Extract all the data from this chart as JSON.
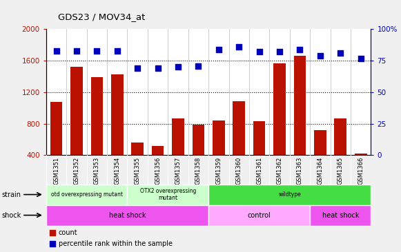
{
  "title": "GDS23 / MOV34_at",
  "samples": [
    "GSM1351",
    "GSM1352",
    "GSM1353",
    "GSM1354",
    "GSM1355",
    "GSM1356",
    "GSM1357",
    "GSM1358",
    "GSM1359",
    "GSM1360",
    "GSM1361",
    "GSM1362",
    "GSM1363",
    "GSM1364",
    "GSM1365",
    "GSM1366"
  ],
  "counts": [
    1080,
    1520,
    1390,
    1430,
    560,
    520,
    870,
    790,
    840,
    1090,
    830,
    1570,
    1660,
    720,
    870,
    420
  ],
  "percentiles": [
    83,
    83,
    83,
    83,
    69,
    69,
    70,
    71,
    84,
    86,
    82,
    82,
    84,
    79,
    81,
    77
  ],
  "ylim_left": [
    400,
    2000
  ],
  "ylim_right": [
    0,
    100
  ],
  "yticks_left": [
    400,
    800,
    1200,
    1600,
    2000
  ],
  "yticks_right": [
    0,
    25,
    50,
    75,
    100
  ],
  "bar_color": "#bb1100",
  "dot_color": "#0000bb",
  "strain_groups": [
    {
      "label": "otd overexpressing mutant",
      "start": 0,
      "end": 4,
      "color": "#ccffcc"
    },
    {
      "label": "OTX2 overexpressing\nmutant",
      "start": 4,
      "end": 8,
      "color": "#ccffcc"
    },
    {
      "label": "wildtype",
      "start": 8,
      "end": 16,
      "color": "#44dd44"
    }
  ],
  "shock_groups": [
    {
      "label": "heat shock",
      "start": 0,
      "end": 8,
      "color": "#ee55ee"
    },
    {
      "label": "control",
      "start": 8,
      "end": 13,
      "color": "#ffaaff"
    },
    {
      "label": "heat shock",
      "start": 13,
      "end": 16,
      "color": "#ee55ee"
    }
  ],
  "fig_bg": "#f0f0f0",
  "plot_bg": "#ffffff",
  "tick_label_bg": "#cccccc"
}
